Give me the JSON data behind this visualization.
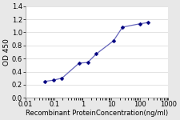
{
  "x": [
    0.047,
    0.094,
    0.188,
    0.75,
    1.5,
    3.0,
    12.0,
    25.0,
    100.0,
    200.0
  ],
  "y": [
    0.25,
    0.27,
    0.3,
    0.53,
    0.54,
    0.67,
    0.87,
    1.08,
    1.13,
    1.15
  ],
  "line_color": "#6666bb",
  "marker_color": "#000080",
  "marker": "D",
  "marker_size": 2.5,
  "line_width": 0.9,
  "xlabel": "Recombinant ProteinConcentration(ng/ml)",
  "ylabel": "OD 450",
  "xlim": [
    0.01,
    1000
  ],
  "ylim": [
    0,
    1.4
  ],
  "yticks": [
    0,
    0.2,
    0.4,
    0.6,
    0.8,
    1.0,
    1.2,
    1.4
  ],
  "xticks": [
    0.01,
    0.1,
    1,
    10,
    100,
    1000
  ],
  "xtick_labels": [
    "0.01",
    "0.1",
    "1",
    "10",
    "100",
    "1000"
  ],
  "grid_color": "#d8d8d8",
  "plot_bg_color": "#ffffff",
  "fig_bg_color": "#e8e8e8",
  "xlabel_fontsize": 6.0,
  "ylabel_fontsize": 6.5,
  "tick_fontsize": 6.0
}
